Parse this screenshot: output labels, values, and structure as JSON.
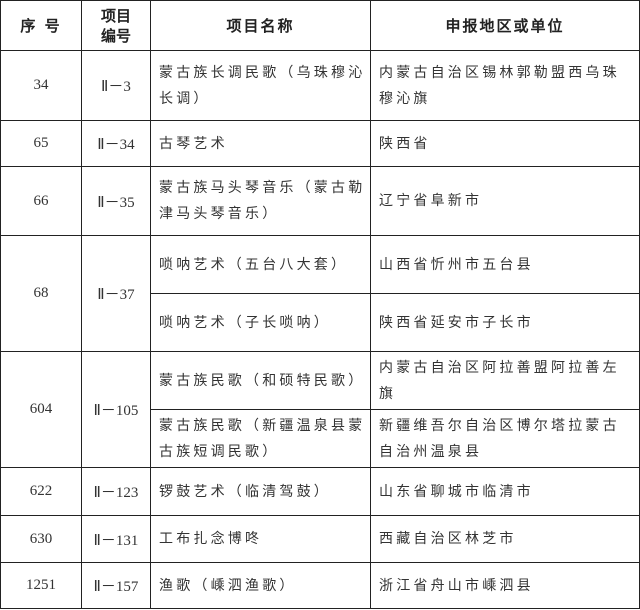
{
  "header": {
    "seq": "序 号",
    "code": "项目编号",
    "name": "项目名称",
    "region": "申报地区或单位"
  },
  "rows": [
    {
      "seq": "34",
      "code": "Ⅱ－3",
      "items": [
        {
          "name": "蒙古族长调民歌（乌珠穆沁长调）",
          "region": "内蒙古自治区锡林郭勒盟西乌珠穆沁旗"
        }
      ]
    },
    {
      "seq": "65",
      "code": "Ⅱ－34",
      "items": [
        {
          "name": "古琴艺术",
          "region": "陕西省"
        }
      ]
    },
    {
      "seq": "66",
      "code": "Ⅱ－35",
      "items": [
        {
          "name": "蒙古族马头琴音乐（蒙古勒津马头琴音乐）",
          "region": "辽宁省阜新市"
        }
      ]
    },
    {
      "seq": "68",
      "code": "Ⅱ－37",
      "items": [
        {
          "name": "唢呐艺术（五台八大套）",
          "region": "山西省忻州市五台县"
        },
        {
          "name": "唢呐艺术（子长唢呐）",
          "region": "陕西省延安市子长市"
        }
      ]
    },
    {
      "seq": "604",
      "code": "Ⅱ－105",
      "items": [
        {
          "name": "蒙古族民歌（和硕特民歌）",
          "region": "内蒙古自治区阿拉善盟阿拉善左旗"
        },
        {
          "name": "蒙古族民歌（新疆温泉县蒙古族短调民歌）",
          "region": "新疆维吾尔自治区博尔塔拉蒙古自治州温泉县"
        }
      ]
    },
    {
      "seq": "622",
      "code": "Ⅱ－123",
      "items": [
        {
          "name": "锣鼓艺术（临清驾鼓）",
          "region": "山东省聊城市临清市"
        }
      ]
    },
    {
      "seq": "630",
      "code": "Ⅱ－131",
      "items": [
        {
          "name": "工布扎念博咚",
          "region": "西藏自治区林芝市"
        }
      ]
    },
    {
      "seq": "1251",
      "code": "Ⅱ－157",
      "items": [
        {
          "name": "渔歌（嵊泗渔歌）",
          "region": "浙江省舟山市嵊泗县"
        }
      ]
    }
  ]
}
